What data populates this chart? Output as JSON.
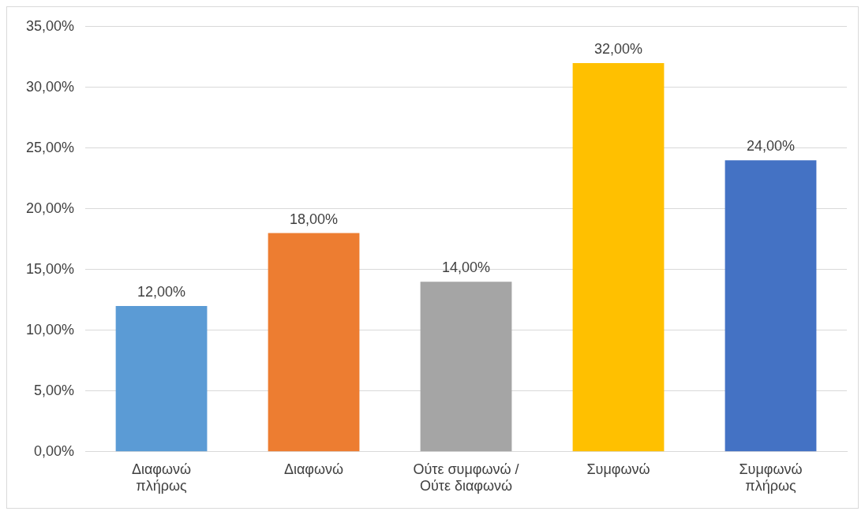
{
  "chart_data": {
    "type": "bar",
    "categories": [
      "Διαφωνώ πλήρως",
      "Διαφωνώ",
      "Ούτε συμφωνώ / Ούτε διαφωνώ",
      "Συμφωνώ",
      "Συμφωνώ πλήρως"
    ],
    "values": [
      12,
      18,
      14,
      32,
      24
    ],
    "colors": [
      "#5b9bd5",
      "#ed7d31",
      "#a5a5a5",
      "#ffc000",
      "#4472c4"
    ],
    "value_labels": [
      "12,00%",
      "18,00%",
      "14,00%",
      "32,00%",
      "24,00%"
    ],
    "ylim": [
      0,
      35
    ],
    "yticks": [
      {
        "value": 0,
        "label": "0,00%"
      },
      {
        "value": 5,
        "label": "5,00%"
      },
      {
        "value": 10,
        "label": "10,00%"
      },
      {
        "value": 15,
        "label": "15,00%"
      },
      {
        "value": 20,
        "label": "20,00%"
      },
      {
        "value": 25,
        "label": "25,00%"
      },
      {
        "value": 30,
        "label": "30,00%"
      },
      {
        "value": 35,
        "label": "35,00%"
      }
    ],
    "grid": "y",
    "legend": false
  }
}
